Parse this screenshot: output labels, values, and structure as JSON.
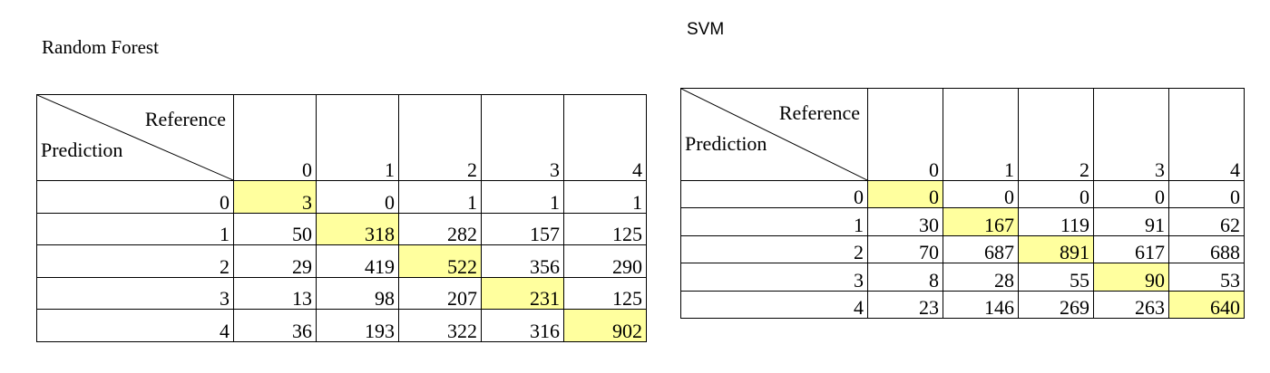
{
  "tables": [
    {
      "title": "Random Forest",
      "reference_label": "Reference",
      "prediction_label": "Prediction",
      "columns": [
        "0",
        "1",
        "2",
        "3",
        "4"
      ],
      "rows": [
        {
          "label": "0",
          "values": [
            "3",
            "0",
            "1",
            "1",
            "1"
          ]
        },
        {
          "label": "1",
          "values": [
            "50",
            "318",
            "282",
            "157",
            "125"
          ]
        },
        {
          "label": "2",
          "values": [
            "29",
            "419",
            "522",
            "356",
            "290"
          ]
        },
        {
          "label": "3",
          "values": [
            "13",
            "98",
            "207",
            "231",
            "125"
          ]
        },
        {
          "label": "4",
          "values": [
            "36",
            "193",
            "322",
            "316",
            "902"
          ]
        }
      ]
    },
    {
      "title": "SVM",
      "reference_label": "Reference",
      "prediction_label": "Prediction",
      "columns": [
        "0",
        "1",
        "2",
        "3",
        "4"
      ],
      "rows": [
        {
          "label": "0",
          "values": [
            "0",
            "0",
            "0",
            "0",
            "0"
          ]
        },
        {
          "label": "1",
          "values": [
            "30",
            "167",
            "119",
            "91",
            "62"
          ]
        },
        {
          "label": "2",
          "values": [
            "70",
            "687",
            "891",
            "617",
            "688"
          ]
        },
        {
          "label": "3",
          "values": [
            "8",
            "28",
            "55",
            "90",
            "53"
          ]
        },
        {
          "label": "4",
          "values": [
            "23",
            "146",
            "269",
            "263",
            "640"
          ]
        }
      ]
    }
  ],
  "highlight_color": "#ffff9e"
}
